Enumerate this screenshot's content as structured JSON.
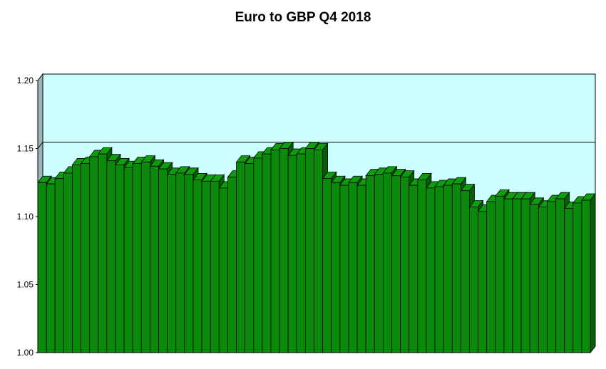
{
  "chart_data": {
    "type": "bar",
    "title": "Euro to GBP Q4 2018",
    "xlabel": "",
    "ylabel": "",
    "ylim": [
      1.0,
      1.2
    ],
    "yticks": [
      "1.00",
      "1.05",
      "1.10",
      "1.15",
      "1.20"
    ],
    "grid": "horizontal major gridlines",
    "style": "3D bars",
    "colors": {
      "bar_front": "#0a8a0a",
      "bar_top": "#0f9d0f",
      "bar_side": "#056005",
      "plot_background": "#ccffff",
      "floor": "#c0c0c0",
      "left_wall": "#9ab6b6"
    },
    "values": [
      1.125,
      1.124,
      1.128,
      1.132,
      1.138,
      1.139,
      1.144,
      1.146,
      1.141,
      1.138,
      1.136,
      1.139,
      1.14,
      1.137,
      1.135,
      1.131,
      1.132,
      1.131,
      1.127,
      1.126,
      1.126,
      1.121,
      1.129,
      1.14,
      1.139,
      1.143,
      1.146,
      1.149,
      1.15,
      1.145,
      1.146,
      1.15,
      1.149,
      1.128,
      1.125,
      1.123,
      1.125,
      1.123,
      1.13,
      1.131,
      1.132,
      1.13,
      1.129,
      1.123,
      1.127,
      1.121,
      1.122,
      1.123,
      1.124,
      1.119,
      1.107,
      1.104,
      1.111,
      1.115,
      1.113,
      1.113,
      1.113,
      1.109,
      1.107,
      1.111,
      1.113,
      1.106,
      1.11,
      1.112
    ]
  }
}
